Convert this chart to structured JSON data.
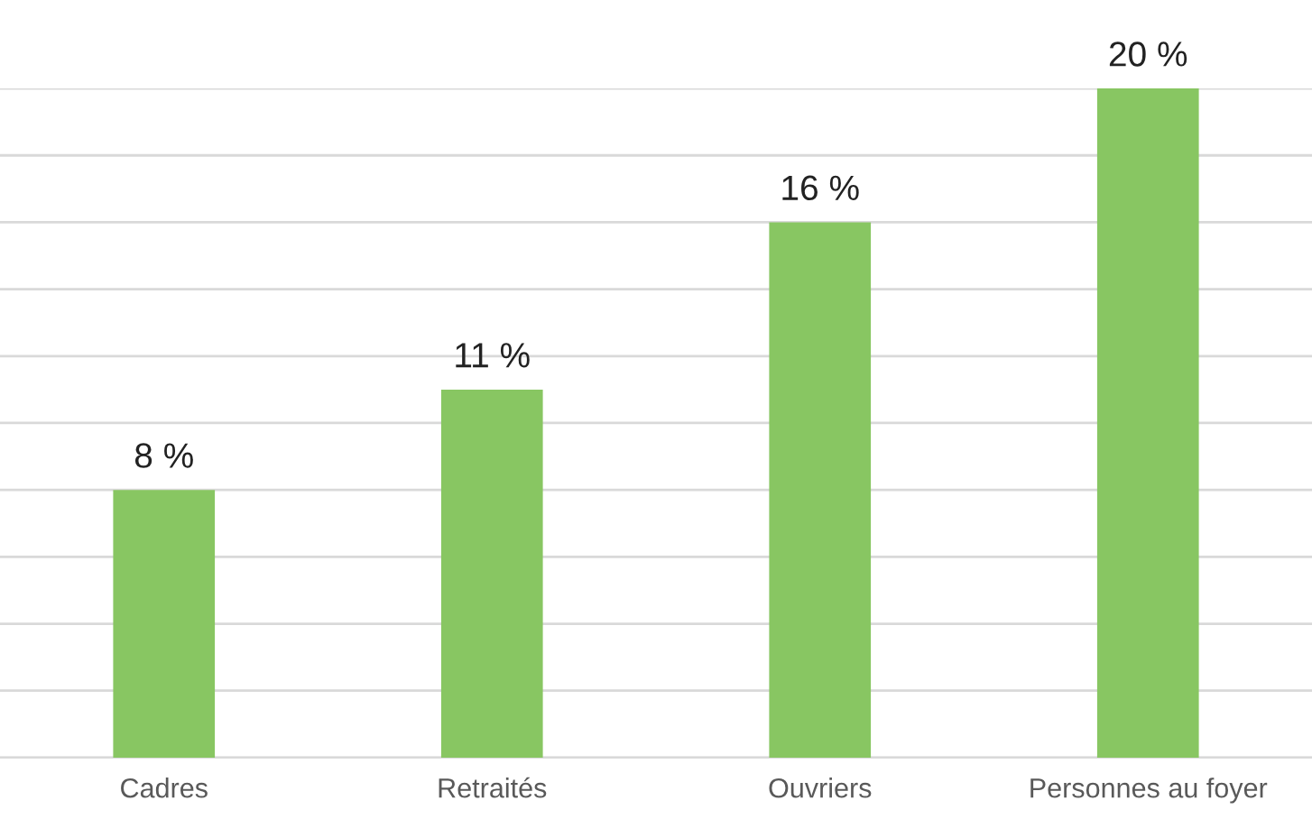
{
  "chart_data": {
    "type": "bar",
    "categories": [
      "Cadres",
      "Retraités",
      "Ouvriers",
      "Personnes au foyer"
    ],
    "values": [
      8,
      11,
      16,
      20
    ],
    "value_labels": [
      "8 %",
      "11 %",
      "16 %",
      "20 %"
    ],
    "color": "#88c662",
    "ylim": [
      0,
      20
    ],
    "yticks": [
      {
        "value": 0,
        "label": null
      },
      {
        "value": 2,
        "label": null
      },
      {
        "value": 4,
        "label": null
      },
      {
        "value": 6,
        "label": null
      },
      {
        "value": 8,
        "label": null
      },
      {
        "value": 10,
        "label": null
      },
      {
        "value": 12,
        "label": null
      },
      {
        "value": 14,
        "label": null
      },
      {
        "value": 16,
        "label": null
      },
      {
        "value": 18,
        "label": null
      },
      {
        "value": 20,
        "label": null
      }
    ],
    "grid": "y",
    "legend": false
  }
}
